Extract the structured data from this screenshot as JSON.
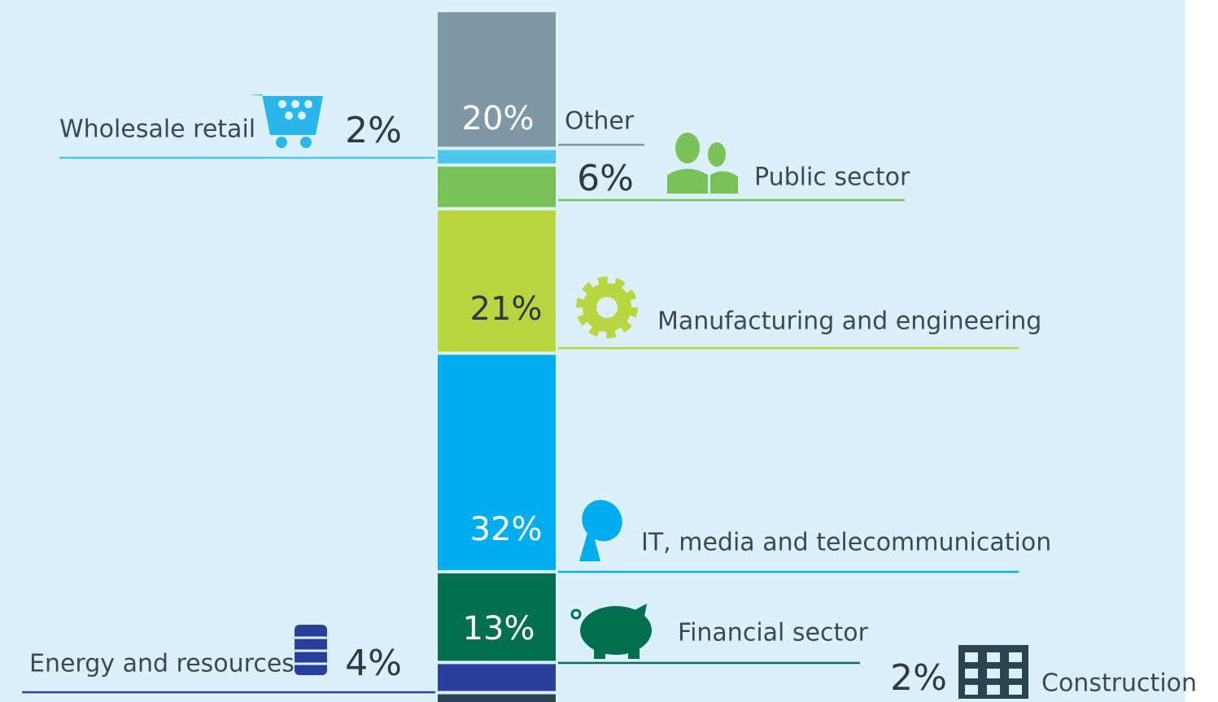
{
  "chart_data": {
    "type": "stacked_bar",
    "categories": [
      "Other",
      "Wholesale retail",
      "Public sector",
      "Manufacturing and engineering",
      "IT, media and telecommunication",
      "Financial sector",
      "Energy and resources",
      "Construction"
    ],
    "values": [
      20,
      2,
      6,
      21,
      32,
      13,
      4,
      2
    ],
    "value_labels": [
      "20%",
      "2%",
      "6%",
      "21%",
      "32%",
      "13%",
      "4%",
      "2%"
    ],
    "colors": [
      "#7f98a6",
      "#4fc6ee",
      "#78c257",
      "#b9d641",
      "#00aeef",
      "#006e4f",
      "#283f9b",
      "#2b4452"
    ]
  }
}
